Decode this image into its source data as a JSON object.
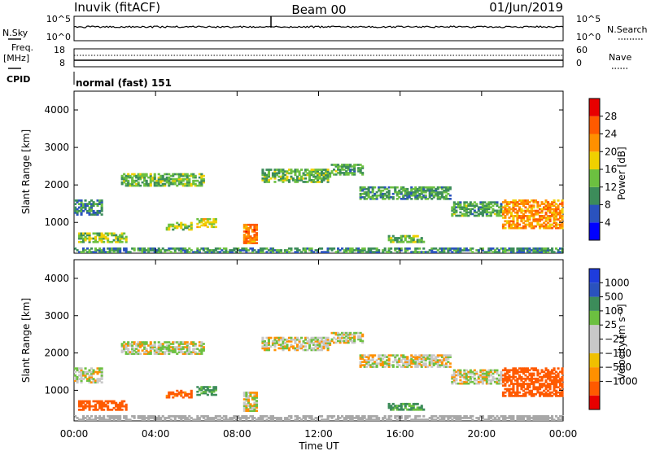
{
  "header": {
    "station": "Inuvik (fitACF)",
    "beam": "Beam 00",
    "date": "01/Jun/2019"
  },
  "strips": {
    "nsky_label": "N.Sky",
    "nsky_top": "10^5",
    "nsky_bottom": "10^0",
    "nsearch_label": "N.Search",
    "nsearch_top": "10^5",
    "nsearch_bottom": "10^0",
    "freq_label": "Freq.",
    "freq_unit": "[MHz]",
    "freq_top": "18",
    "freq_bottom": "8",
    "nave_label": "Nave",
    "nave_top": "60",
    "nave_bottom": "0",
    "cpid_label": "CPID",
    "cpid_value": "normal (fast) 151"
  },
  "colors": {
    "power": [
      "#0000ff",
      "#2a52be",
      "#3c8c5a",
      "#6cc040",
      "#f0d000",
      "#ff9000",
      "#ff5a00",
      "#e80000"
    ],
    "velocity": [
      "#e80000",
      "#ff5a00",
      "#ff9000",
      "#f0c000",
      "#c8c8c8",
      "#c8c8c8",
      "#6cc040",
      "#3c8c5a",
      "#2a52be",
      "#1e3cdc"
    ],
    "ground": "#a8a8a8"
  },
  "chart_data": [
    {
      "type": "heatmap",
      "panel": "power",
      "ylabel": "Slant Range [km]",
      "ylim": [
        180,
        4500
      ],
      "yticks": [
        "1000",
        "2000",
        "3000",
        "4000"
      ],
      "xticks": [
        "00:00",
        "04:00",
        "08:00",
        "12:00",
        "16:00",
        "20:00",
        "00:00"
      ],
      "colorbar_label": "Power [dB]",
      "colorbar_ticks": [
        "4",
        "8",
        "12",
        "16",
        "20",
        "24",
        "28"
      ],
      "colorbar_range": [
        0,
        32
      ]
    },
    {
      "type": "heatmap",
      "panel": "velocity",
      "ylabel": "Slant Range [km]",
      "ylim": [
        180,
        4500
      ],
      "yticks": [
        "1000",
        "2000",
        "3000",
        "4000"
      ],
      "xticks": [
        "00:00",
        "04:00",
        "08:00",
        "12:00",
        "16:00",
        "20:00",
        "00:00"
      ],
      "xlabel": "Time UT",
      "colorbar_label": "Velocity [m s⁻¹]",
      "colorbar_ticks": [
        "1000",
        "500",
        "100",
        "25",
        "−25",
        "−100",
        "−500",
        "−1000"
      ]
    }
  ],
  "echo_regions": [
    {
      "t0": 0.0,
      "t1": 1.4,
      "r0": 1180,
      "r1": 1600,
      "p": 9,
      "v": 0
    },
    {
      "t0": 0.2,
      "t1": 2.6,
      "r0": 450,
      "r1": 720,
      "p": 14,
      "v": -300
    },
    {
      "t0": 2.3,
      "t1": 6.4,
      "r0": 1950,
      "r1": 2300,
      "p": 13,
      "v": 10
    },
    {
      "t0": 4.5,
      "t1": 5.8,
      "r0": 780,
      "r1": 1000,
      "p": 15,
      "v": -150
    },
    {
      "t0": 6.0,
      "t1": 7.0,
      "r0": 850,
      "r1": 1100,
      "p": 16,
      "v": 120
    },
    {
      "t0": 8.3,
      "t1": 9.0,
      "r0": 420,
      "r1": 950,
      "p": 24,
      "v": 0
    },
    {
      "t0": 9.2,
      "t1": 12.6,
      "r0": 2050,
      "r1": 2420,
      "p": 13,
      "v": 0
    },
    {
      "t0": 12.6,
      "t1": 14.2,
      "r0": 2250,
      "r1": 2550,
      "p": 12,
      "v": 0
    },
    {
      "t0": 14.0,
      "t1": 18.5,
      "r0": 1600,
      "r1": 1950,
      "p": 11,
      "v": 0
    },
    {
      "t0": 15.4,
      "t1": 17.2,
      "r0": 450,
      "r1": 650,
      "p": 14,
      "v": 120
    },
    {
      "t0": 18.5,
      "t1": 21.0,
      "r0": 1150,
      "r1": 1550,
      "p": 12,
      "v": 0
    },
    {
      "t0": 21.0,
      "t1": 24.0,
      "r0": 820,
      "r1": 1600,
      "p": 22,
      "v": -400
    },
    {
      "t0": 0.0,
      "t1": 24.0,
      "r0": 180,
      "r1": 320,
      "p": 10,
      "v": 0
    }
  ]
}
